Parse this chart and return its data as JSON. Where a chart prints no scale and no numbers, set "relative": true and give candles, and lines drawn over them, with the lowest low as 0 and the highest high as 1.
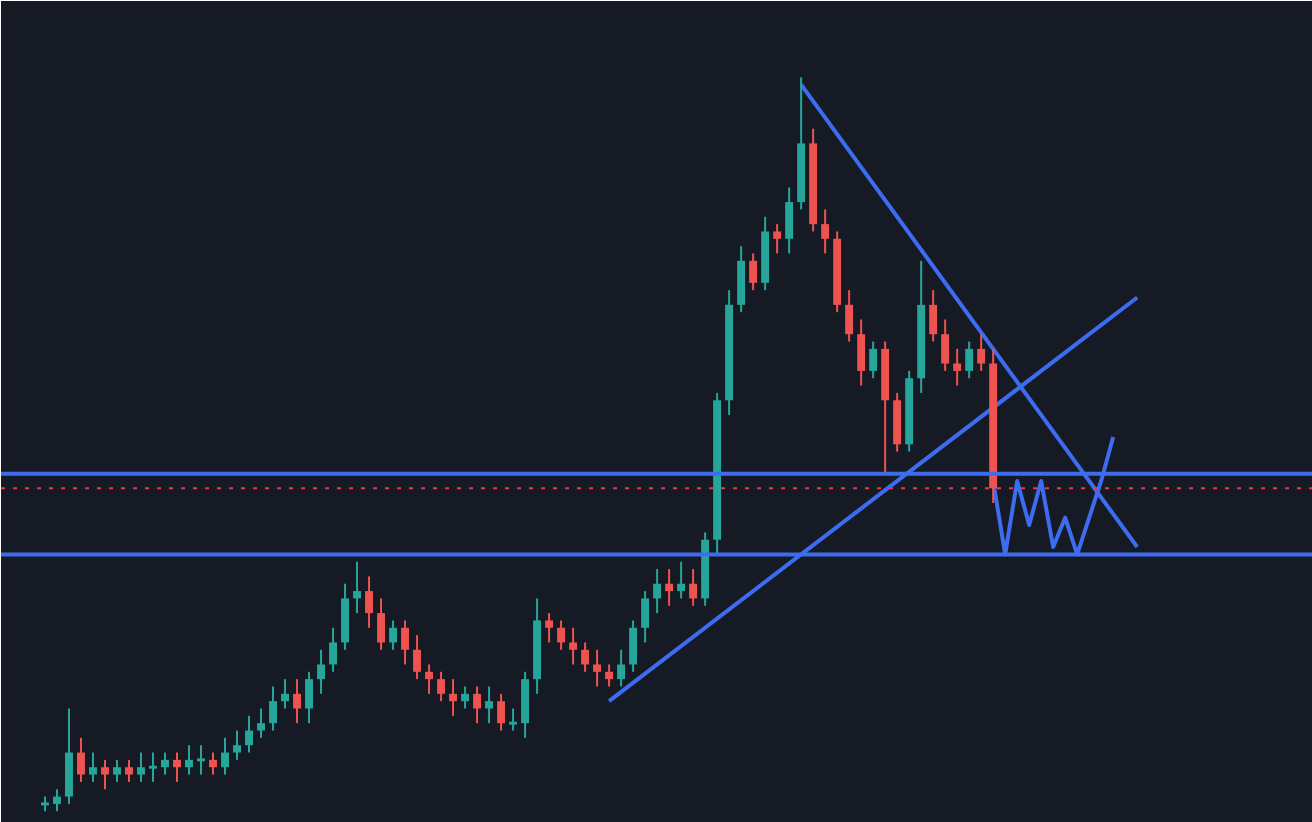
{
  "chart_data": {
    "type": "candlestick",
    "relative": true,
    "categories": [
      null,
      null,
      null,
      null,
      null,
      null,
      null,
      null,
      null,
      null,
      null,
      null,
      null,
      null,
      null,
      null,
      null,
      null,
      null,
      null,
      null,
      null,
      null,
      null,
      null,
      null,
      null,
      null,
      null,
      null,
      null,
      null,
      null,
      null,
      null,
      null,
      null,
      null,
      null,
      null,
      null,
      null,
      null,
      null,
      null,
      null,
      null,
      null,
      null,
      null,
      null,
      null,
      null,
      null,
      null,
      null,
      null,
      null,
      null,
      null,
      null,
      null,
      null,
      null,
      null,
      null,
      null,
      null,
      null,
      null,
      null,
      null,
      null,
      null,
      null,
      null,
      null,
      null,
      null,
      null,
      null,
      null,
      null,
      null,
      null,
      null,
      null,
      null,
      null,
      null,
      null,
      null,
      null
    ],
    "ohlc": [
      [
        0.01,
        0.02,
        0,
        0.01
      ],
      [
        0.01,
        0.03,
        0,
        0.02
      ],
      [
        0.02,
        0.14,
        0.01,
        0.08
      ],
      [
        0.08,
        0.1,
        0.04,
        0.05
      ],
      [
        0.05,
        0.08,
        0.04,
        0.06
      ],
      [
        0.06,
        0.07,
        0.03,
        0.05
      ],
      [
        0.05,
        0.07,
        0.04,
        0.06
      ],
      [
        0.06,
        0.07,
        0.04,
        0.05
      ],
      [
        0.05,
        0.08,
        0.04,
        0.06
      ],
      [
        0.06,
        0.08,
        0.04,
        0.06
      ],
      [
        0.06,
        0.08,
        0.05,
        0.07
      ],
      [
        0.07,
        0.08,
        0.04,
        0.06
      ],
      [
        0.06,
        0.09,
        0.05,
        0.07
      ],
      [
        0.07,
        0.09,
        0.05,
        0.07
      ],
      [
        0.07,
        0.08,
        0.05,
        0.06
      ],
      [
        0.06,
        0.1,
        0.05,
        0.08
      ],
      [
        0.08,
        0.11,
        0.07,
        0.09
      ],
      [
        0.09,
        0.13,
        0.08,
        0.11
      ],
      [
        0.11,
        0.14,
        0.1,
        0.12
      ],
      [
        0.12,
        0.17,
        0.11,
        0.15
      ],
      [
        0.15,
        0.18,
        0.14,
        0.16
      ],
      [
        0.16,
        0.18,
        0.12,
        0.14
      ],
      [
        0.14,
        0.19,
        0.12,
        0.18
      ],
      [
        0.18,
        0.22,
        0.16,
        0.2
      ],
      [
        0.2,
        0.25,
        0.19,
        0.23
      ],
      [
        0.23,
        0.31,
        0.22,
        0.29
      ],
      [
        0.29,
        0.34,
        0.27,
        0.3
      ],
      [
        0.3,
        0.32,
        0.25,
        0.27
      ],
      [
        0.27,
        0.29,
        0.22,
        0.23
      ],
      [
        0.23,
        0.26,
        0.22,
        0.25
      ],
      [
        0.25,
        0.26,
        0.2,
        0.22
      ],
      [
        0.22,
        0.24,
        0.18,
        0.19
      ],
      [
        0.19,
        0.2,
        0.16,
        0.18
      ],
      [
        0.18,
        0.19,
        0.15,
        0.16
      ],
      [
        0.16,
        0.18,
        0.13,
        0.15
      ],
      [
        0.15,
        0.17,
        0.14,
        0.16
      ],
      [
        0.16,
        0.17,
        0.12,
        0.14
      ],
      [
        0.14,
        0.17,
        0.12,
        0.15
      ],
      [
        0.15,
        0.16,
        0.11,
        0.12
      ],
      [
        0.12,
        0.14,
        0.11,
        0.12
      ],
      [
        0.12,
        0.19,
        0.1,
        0.18
      ],
      [
        0.18,
        0.29,
        0.16,
        0.26
      ],
      [
        0.26,
        0.27,
        0.23,
        0.25
      ],
      [
        0.25,
        0.26,
        0.22,
        0.23
      ],
      [
        0.23,
        0.25,
        0.2,
        0.22
      ],
      [
        0.22,
        0.23,
        0.19,
        0.2
      ],
      [
        0.2,
        0.22,
        0.17,
        0.19
      ],
      [
        0.19,
        0.2,
        0.17,
        0.18
      ],
      [
        0.18,
        0.22,
        0.17,
        0.2
      ],
      [
        0.2,
        0.26,
        0.19,
        0.25
      ],
      [
        0.25,
        0.3,
        0.23,
        0.29
      ],
      [
        0.29,
        0.33,
        0.27,
        0.31
      ],
      [
        0.31,
        0.33,
        0.28,
        0.3
      ],
      [
        0.3,
        0.34,
        0.29,
        0.31
      ],
      [
        0.31,
        0.33,
        0.28,
        0.29
      ],
      [
        0.29,
        0.38,
        0.28,
        0.37
      ],
      [
        0.37,
        0.57,
        0.35,
        0.56
      ],
      [
        0.56,
        0.71,
        0.54,
        0.69
      ],
      [
        0.69,
        0.77,
        0.68,
        0.75
      ],
      [
        0.75,
        0.76,
        0.71,
        0.72
      ],
      [
        0.72,
        0.81,
        0.71,
        0.79
      ],
      [
        0.79,
        0.8,
        0.76,
        0.78
      ],
      [
        0.78,
        0.85,
        0.76,
        0.83
      ],
      [
        0.83,
        1,
        0.82,
        0.91
      ],
      [
        0.91,
        0.93,
        0.79,
        0.8
      ],
      [
        0.8,
        0.82,
        0.76,
        0.78
      ],
      [
        0.78,
        0.79,
        0.68,
        0.69
      ],
      [
        0.69,
        0.71,
        0.64,
        0.65
      ],
      [
        0.65,
        0.67,
        0.58,
        0.6
      ],
      [
        0.6,
        0.64,
        0.59,
        0.63
      ],
      [
        0.63,
        0.64,
        0.46,
        0.56
      ],
      [
        0.56,
        0.57,
        0.49,
        0.5
      ],
      [
        0.5,
        0.6,
        0.49,
        0.59
      ],
      [
        0.59,
        0.75,
        0.57,
        0.69
      ],
      [
        0.69,
        0.71,
        0.64,
        0.65
      ],
      [
        0.65,
        0.67,
        0.6,
        0.61
      ],
      [
        0.61,
        0.63,
        0.58,
        0.6
      ],
      [
        0.6,
        0.64,
        0.59,
        0.63
      ],
      [
        0.63,
        0.65,
        0.6,
        0.61
      ],
      [
        0.61,
        0.63,
        0.42,
        0.44
      ],
      null,
      null,
      null,
      null,
      null,
      null,
      null,
      null,
      null,
      null,
      null,
      null,
      null
    ],
    "colors": [
      "#26a69a",
      "#26a69a",
      "#26a69a",
      "#ef5350",
      "#26a69a",
      "#ef5350",
      "#26a69a",
      "#ef5350",
      "#26a69a",
      "#26a69a",
      "#26a69a",
      "#ef5350",
      "#26a69a",
      "#26a69a",
      "#ef5350",
      "#26a69a",
      "#26a69a",
      "#26a69a",
      "#26a69a",
      "#26a69a",
      "#26a69a",
      "#ef5350",
      "#26a69a",
      "#26a69a",
      "#26a69a",
      "#26a69a",
      "#26a69a",
      "#ef5350",
      "#ef5350",
      "#26a69a",
      "#ef5350",
      "#ef5350",
      "#ef5350",
      "#ef5350",
      "#ef5350",
      "#26a69a",
      "#ef5350",
      "#26a69a",
      "#ef5350",
      "#26a69a",
      "#26a69a",
      "#26a69a",
      "#ef5350",
      "#ef5350",
      "#ef5350",
      "#ef5350",
      "#ef5350",
      "#ef5350",
      "#26a69a",
      "#26a69a",
      "#26a69a",
      "#26a69a",
      "#ef5350",
      "#26a69a",
      "#ef5350",
      "#26a69a",
      "#26a69a",
      "#26a69a",
      "#26a69a",
      "#ef5350",
      "#26a69a",
      "#ef5350",
      "#26a69a",
      "#26a69a",
      "#ef5350",
      "#ef5350",
      "#ef5350",
      "#ef5350",
      "#ef5350",
      "#26a69a",
      "#ef5350",
      "#ef5350",
      "#26a69a",
      "#26a69a",
      "#ef5350",
      "#ef5350",
      "#ef5350",
      "#26a69a",
      "#ef5350",
      "#ef5350",
      null,
      null,
      null,
      null,
      null,
      null,
      null,
      null,
      null,
      null,
      null,
      null,
      null
    ],
    "series": [
      {
        "type": "line",
        "color": "#3d6cf0",
        "values": [
          null,
          null,
          null,
          null,
          null,
          null,
          null,
          null,
          null,
          null,
          null,
          null,
          null,
          null,
          null,
          null,
          null,
          null,
          null,
          null,
          null,
          null,
          null,
          null,
          null,
          null,
          null,
          null,
          null,
          null,
          null,
          null,
          null,
          null,
          null,
          null,
          null,
          null,
          null,
          null,
          null,
          null,
          null,
          null,
          null,
          null,
          null,
          null,
          null,
          null,
          null,
          null,
          null,
          null,
          null,
          null,
          null,
          null,
          null,
          null,
          null,
          null,
          null,
          0.99,
          null,
          null,
          null,
          null,
          null,
          null,
          null,
          null,
          null,
          null,
          null,
          null,
          null,
          null,
          null,
          null,
          null,
          null,
          null,
          null,
          null,
          null,
          null,
          null,
          null,
          null,
          null,
          0.36,
          null
        ]
      },
      {
        "type": "line",
        "color": "#3d6cf0",
        "values": [
          null,
          null,
          null,
          null,
          null,
          null,
          null,
          null,
          null,
          null,
          null,
          null,
          null,
          null,
          null,
          null,
          null,
          null,
          null,
          null,
          null,
          null,
          null,
          null,
          null,
          null,
          null,
          null,
          null,
          null,
          null,
          null,
          null,
          null,
          null,
          null,
          null,
          null,
          null,
          null,
          null,
          null,
          null,
          null,
          null,
          null,
          null,
          0.15,
          null,
          null,
          null,
          null,
          null,
          null,
          null,
          null,
          null,
          null,
          null,
          null,
          null,
          null,
          null,
          null,
          null,
          null,
          null,
          null,
          null,
          null,
          null,
          null,
          null,
          null,
          null,
          null,
          null,
          null,
          null,
          null,
          null,
          null,
          null,
          null,
          null,
          null,
          null,
          null,
          null,
          null,
          null,
          0.7,
          null
        ]
      },
      {
        "type": "line",
        "color": "#3d6cf0",
        "values": [
          null,
          null,
          null,
          null,
          null,
          null,
          null,
          null,
          null,
          null,
          null,
          null,
          null,
          null,
          null,
          null,
          null,
          null,
          null,
          null,
          null,
          null,
          null,
          null,
          null,
          null,
          null,
          null,
          null,
          null,
          null,
          null,
          null,
          null,
          null,
          null,
          null,
          null,
          null,
          null,
          null,
          null,
          null,
          null,
          null,
          null,
          null,
          null,
          null,
          null,
          null,
          null,
          null,
          null,
          null,
          null,
          null,
          null,
          null,
          null,
          null,
          null,
          null,
          null,
          null,
          null,
          null,
          null,
          null,
          null,
          null,
          null,
          null,
          null,
          null,
          null,
          null,
          null,
          null,
          0.45,
          0.35,
          0.45,
          0.39,
          0.45,
          0.36,
          0.4,
          0.35,
          0.4,
          0.45,
          0.51,
          null,
          null,
          null
        ]
      }
    ],
    "ref_lines": [
      {
        "axis": "y",
        "value": 0.46,
        "color": "#3d6cf0",
        "line_style": "solid"
      },
      {
        "axis": "y",
        "value": 0.35,
        "color": "#3d6cf0",
        "line_style": "solid"
      },
      {
        "axis": "y",
        "value": 0.44,
        "color": "#f23645",
        "line_style": "dotted"
      }
    ]
  }
}
